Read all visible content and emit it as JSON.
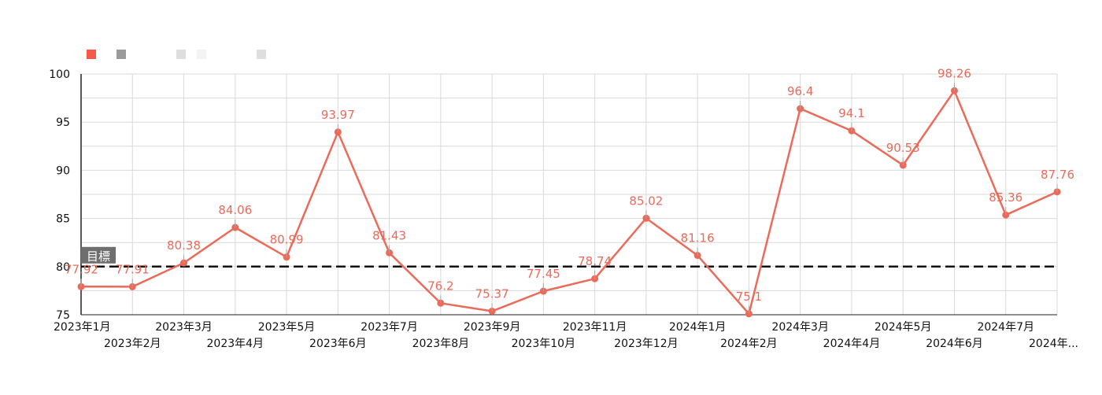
{
  "colors": {
    "series": "#EB6A5A",
    "target_line": "#111111",
    "grid": "#D9D9D9",
    "axis": "#222222",
    "label_badge": "#6E6E6E",
    "legend": [
      "#F8584A",
      "#9B9B9B",
      "#DEDEDE",
      "#F3F3F3",
      "#DEDEDE"
    ]
  },
  "chart_data": {
    "type": "line",
    "categories": [
      "2023年1月",
      "2023年2月",
      "2023年3月",
      "2023年4月",
      "2023年5月",
      "2023年6月",
      "2023年7月",
      "2023年8月",
      "2023年9月",
      "2023年10月",
      "2023年11月",
      "2023年12月",
      "2024年1月",
      "2024年2月",
      "2024年3月",
      "2024年4月",
      "2024年5月",
      "2024年6月",
      "2024年7月",
      "2024年..."
    ],
    "series": [
      {
        "values": [
          77.92,
          77.91,
          80.38,
          84.06,
          80.99,
          93.97,
          81.43,
          76.2,
          75.37,
          77.45,
          78.74,
          85.02,
          81.16,
          75.1,
          96.4,
          94.1,
          90.53,
          98.26,
          85.36,
          87.76
        ],
        "labels": [
          "77.92",
          "77.91",
          "80.38",
          "84.06",
          "80.99",
          "93.97",
          "81.43",
          "76.2",
          "75.37",
          "77.45",
          "78.74",
          "85.02",
          "81.16",
          "75.1",
          "96.4",
          "94.1",
          "90.53",
          "98.26",
          "85.36",
          "87.76"
        ]
      }
    ],
    "target": {
      "value": 80,
      "label": "目標"
    },
    "ylim": [
      75,
      100
    ],
    "yticks": [
      75,
      80,
      85,
      90,
      95,
      100
    ],
    "grid": true,
    "legend_position": "top-left"
  }
}
